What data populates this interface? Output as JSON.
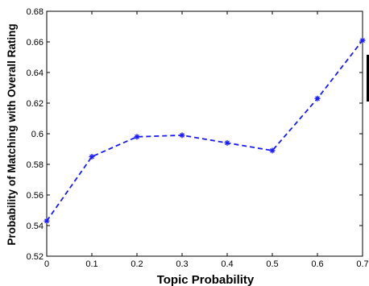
{
  "chart_data": {
    "type": "line",
    "title": "",
    "xlabel": "Topic Probability",
    "ylabel": "Probability of Matching with Overall Rating",
    "x": [
      0,
      0.1,
      0.2,
      0.3,
      0.4,
      0.5,
      0.6,
      0.7
    ],
    "x_tick_labels": [
      "0",
      "0.1",
      "0.2",
      "0.3",
      "0.4",
      "0.5",
      "0.6",
      "0.7"
    ],
    "y_tick_values": [
      0.52,
      0.54,
      0.56,
      0.58,
      0.6,
      0.62,
      0.64,
      0.66,
      0.68
    ],
    "y_tick_labels": [
      "0.52",
      "0.54",
      "0.56",
      "0.58",
      "0.6",
      "0.62",
      "0.64",
      "0.66",
      "0.68"
    ],
    "xlim": [
      0,
      0.7
    ],
    "ylim": [
      0.52,
      0.68
    ],
    "grid": false,
    "legend": "none",
    "series": [
      {
        "values": [
          0.543,
          0.585,
          0.598,
          0.599,
          0.594,
          0.589,
          0.623,
          0.661
        ],
        "color": "#1a1aff",
        "line_style": "dashed",
        "marker": "star"
      }
    ]
  }
}
